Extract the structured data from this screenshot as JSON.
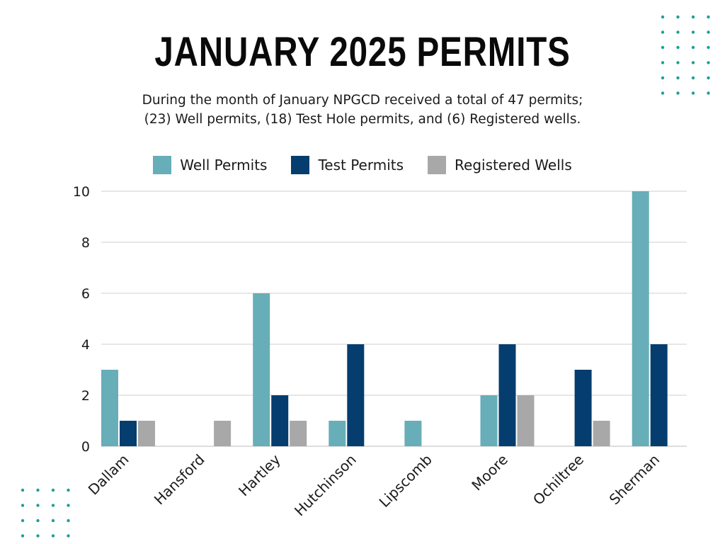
{
  "title": "JANUARY 2025 PERMITS",
  "subtitle_line1": "During the month of January NPGCD received a total of 47 permits;",
  "subtitle_line2": "(23) Well permits, (18) Test Hole permits, and (6) Registered wells.",
  "colors": {
    "well": "#67aeb8",
    "test": "#053d6e",
    "registered": "#a8a8a8",
    "grid": "#cfcfcf",
    "dots": "#1f9e98"
  },
  "chart_data": {
    "type": "bar",
    "categories": [
      "Dallam",
      "Hansford",
      "Hartley",
      "Hutchinson",
      "Lipscomb",
      "Moore",
      "Ochiltree",
      "Sherman"
    ],
    "series": [
      {
        "name": "Well Permits",
        "values": [
          3,
          0,
          6,
          1,
          1,
          2,
          0,
          10
        ]
      },
      {
        "name": "Test Permits",
        "values": [
          1,
          0,
          2,
          4,
          0,
          4,
          3,
          4
        ]
      },
      {
        "name": "Registered Wells",
        "values": [
          1,
          1,
          1,
          0,
          0,
          2,
          1,
          0
        ]
      }
    ],
    "ylim": [
      0,
      10
    ],
    "yticks": [
      0,
      2,
      4,
      6,
      8,
      10
    ],
    "grid": true,
    "legend": "top"
  }
}
